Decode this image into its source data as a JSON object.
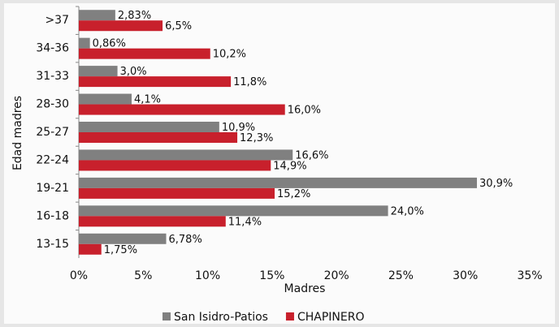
{
  "chart_data": {
    "type": "barh",
    "ylabel": "Edad madres",
    "xlabel": "Madres",
    "categories": [
      ">37",
      "34-36",
      "31-33",
      "28-30",
      "25-27",
      "22-24",
      "19-21",
      "16-18",
      "13-15"
    ],
    "series": [
      {
        "name": "San Isidro-Patios",
        "color": "#808080",
        "values": [
          2.83,
          0.86,
          3.0,
          4.1,
          10.9,
          16.6,
          30.9,
          24.0,
          6.78
        ],
        "value_labels": [
          "2,83%",
          "0,86%",
          "3,0%",
          "4,1%",
          "10,9%",
          "16,6%",
          "30,9%",
          "24,0%",
          "6,78%"
        ]
      },
      {
        "name": "CHAPINERO",
        "color": "#c8202c",
        "values": [
          6.5,
          10.2,
          11.8,
          16.0,
          12.3,
          14.9,
          15.2,
          11.4,
          1.75
        ],
        "value_labels": [
          "6,5%",
          "10,2%",
          "11,8%",
          "16,0%",
          "12,3%",
          "14,9%",
          "15,2%",
          "11,4%",
          "1,75%"
        ]
      }
    ],
    "xlim": [
      0,
      35
    ],
    "xticks": [
      {
        "value": 0,
        "label": "0%"
      },
      {
        "value": 5,
        "label": "5%"
      },
      {
        "value": 10,
        "label": "10%"
      },
      {
        "value": 15,
        "label": "15%"
      },
      {
        "value": 20,
        "label": "20%"
      },
      {
        "value": 25,
        "label": "25%"
      },
      {
        "value": 30,
        "label": "30%"
      },
      {
        "value": 35,
        "label": "35%"
      }
    ],
    "legend": "bottom"
  }
}
